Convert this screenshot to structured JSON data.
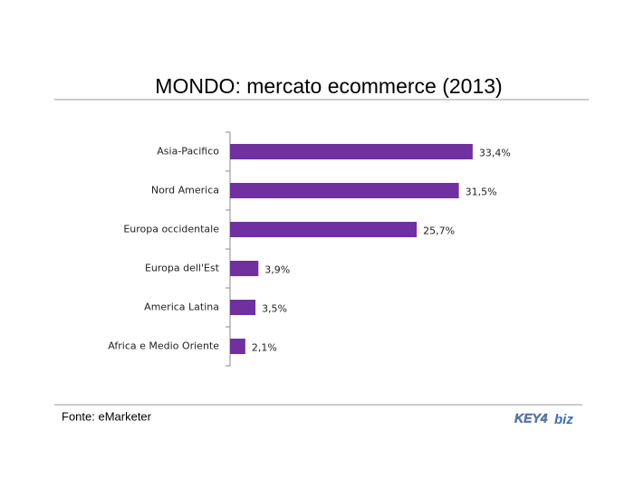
{
  "chart_data": {
    "type": "bar",
    "orientation": "horizontal",
    "title": "MONDO: mercato ecommerce (2013)",
    "categories": [
      "Asia-Pacifico",
      "Nord America",
      "Europa occidentale",
      "Europa dell'Est",
      "America Latina",
      "Africa e Medio Oriente"
    ],
    "values": [
      33.4,
      31.5,
      25.7,
      3.9,
      3.5,
      2.1
    ],
    "value_labels": [
      "33,4%",
      "31,5%",
      "25,7%",
      "3,9%",
      "3,5%",
      "2,1%"
    ],
    "color": "#7030a0",
    "source": "Fonte: eMarketer",
    "logo": {
      "key": "KEY4",
      "biz": "biz"
    }
  }
}
